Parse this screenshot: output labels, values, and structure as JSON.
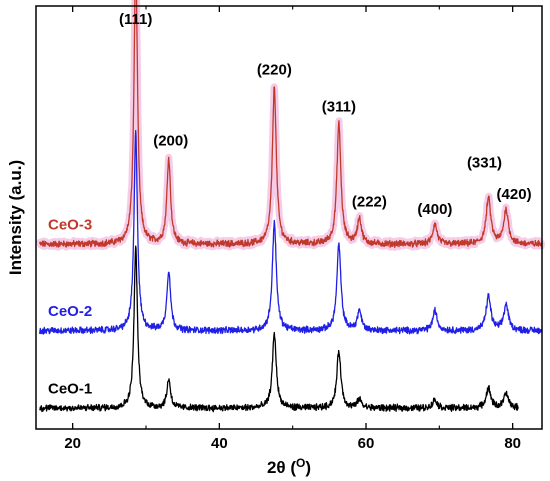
{
  "chart_data": {
    "type": "line",
    "title": "",
    "xlabel": "2θ (",
    "xlabel_sup": "O",
    "xlabel_close": ")",
    "ylabel": "Intensity (a.u.)",
    "xlim": [
      15,
      84
    ],
    "xticks": [
      20,
      40,
      60,
      80
    ],
    "yticks_shown": false,
    "grid": false,
    "legend": "inline labels at left",
    "peaks": [
      {
        "label": "(111)",
        "x": 28.6,
        "h3": 1.0,
        "h2": 0.69,
        "h1": 0.56,
        "w": 0.28
      },
      {
        "label": "(200)",
        "x": 33.1,
        "h3": 0.3,
        "h2": 0.21,
        "h1": 0.1,
        "w": 0.3
      },
      {
        "label": "(220)",
        "x": 47.5,
        "h3": 0.55,
        "h2": 0.38,
        "h1": 0.26,
        "w": 0.32
      },
      {
        "label": "(311)",
        "x": 56.3,
        "h3": 0.42,
        "h2": 0.3,
        "h1": 0.2,
        "w": 0.33
      },
      {
        "label": "(222)",
        "x": 59.1,
        "h3": 0.09,
        "h2": 0.07,
        "h1": 0.03,
        "w": 0.33
      },
      {
        "label": "(400)",
        "x": 69.4,
        "h3": 0.07,
        "h2": 0.07,
        "h1": 0.03,
        "w": 0.35
      },
      {
        "label": "(331)",
        "x": 76.7,
        "h3": 0.16,
        "h2": 0.12,
        "h1": 0.07,
        "w": 0.38
      },
      {
        "label": "(420)",
        "x": 79.1,
        "h3": 0.12,
        "h2": 0.09,
        "h1": 0.05,
        "w": 0.38
      }
    ],
    "series": [
      {
        "name": "CeO-3",
        "color": "#c0392b",
        "x_range": [
          15.5,
          84
        ],
        "offset": 0.62,
        "height_key": "h3",
        "highlight": "#f4c6e6"
      },
      {
        "name": "CeO-2",
        "color": "#1f1fe6",
        "x_range": [
          15.5,
          84
        ],
        "offset": 0.33,
        "height_key": "h2",
        "highlight": ""
      },
      {
        "name": "CeO-1",
        "color": "#000000",
        "x_range": [
          15.5,
          80.8
        ],
        "offset": 0.07,
        "height_key": "h1",
        "highlight": ""
      }
    ]
  }
}
